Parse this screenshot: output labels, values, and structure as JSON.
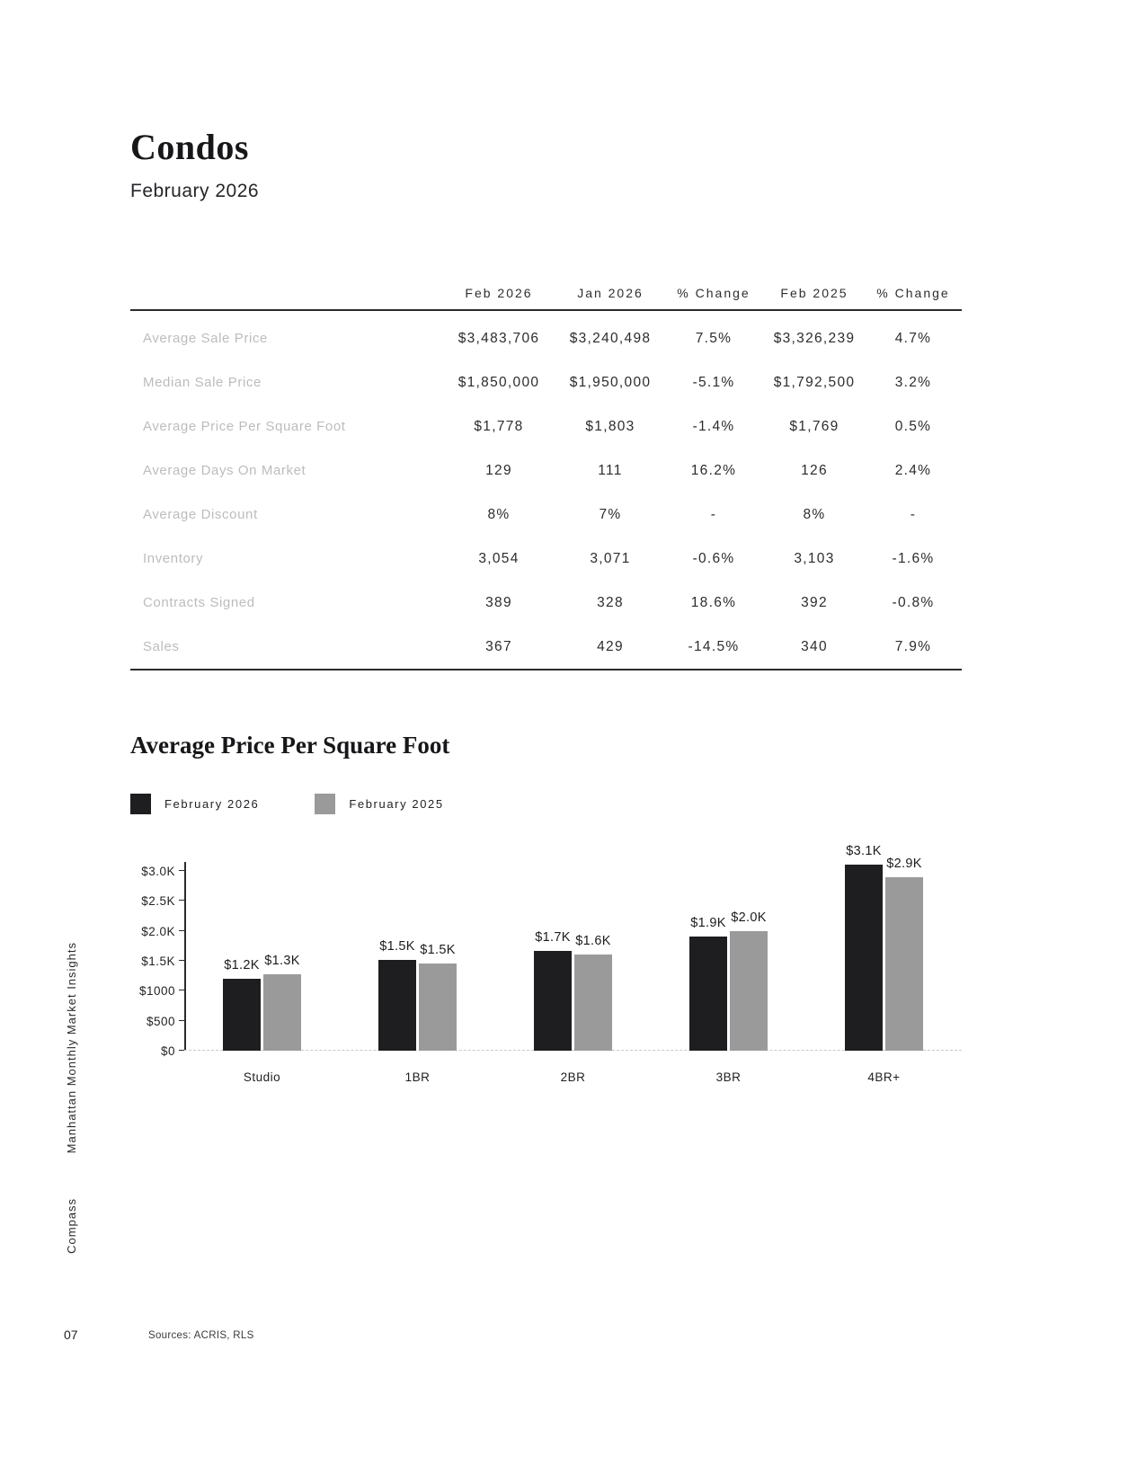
{
  "page": {
    "title": "Condos",
    "subtitle": "February 2026",
    "sidebar_title": "Manhattan Monthly Market Insights",
    "sidebar_brand": "Compass",
    "page_number": "07",
    "sources": "Sources: ACRIS, RLS"
  },
  "table": {
    "columns": [
      "Feb 2026",
      "Jan 2026",
      "% Change",
      "Feb 2025",
      "% Change"
    ],
    "rows": [
      {
        "label": "Average Sale Price",
        "values": [
          "$3,483,706",
          "$3,240,498",
          "7.5%",
          "$3,326,239",
          "4.7%"
        ]
      },
      {
        "label": "Median Sale Price",
        "values": [
          "$1,850,000",
          "$1,950,000",
          "-5.1%",
          "$1,792,500",
          "3.2%"
        ]
      },
      {
        "label": "Average Price Per Square Foot",
        "values": [
          "$1,778",
          "$1,803",
          "-1.4%",
          "$1,769",
          "0.5%"
        ]
      },
      {
        "label": "Average Days On Market",
        "values": [
          "129",
          "111",
          "16.2%",
          "126",
          "2.4%"
        ]
      },
      {
        "label": "Average Discount",
        "values": [
          "8%",
          "7%",
          "-",
          "8%",
          "-"
        ]
      },
      {
        "label": "Inventory",
        "values": [
          "3,054",
          "3,071",
          "-0.6%",
          "3,103",
          "-1.6%"
        ]
      },
      {
        "label": "Contracts Signed",
        "values": [
          "389",
          "328",
          "18.6%",
          "392",
          "-0.8%"
        ]
      },
      {
        "label": "Sales",
        "values": [
          "367",
          "429",
          "-14.5%",
          "340",
          "7.9%"
        ]
      }
    ]
  },
  "chart_data": {
    "type": "bar",
    "title": "Average Price Per Square Foot",
    "categories": [
      "Studio",
      "1BR",
      "2BR",
      "3BR",
      "4BR+"
    ],
    "series": [
      {
        "name": "February 2026",
        "color": "#1e1e21",
        "values": [
          1200,
          1510,
          1660,
          1900,
          3100
        ],
        "labels": [
          "$1.2K",
          "$1.5K",
          "$1.7K",
          "$1.9K",
          "$3.1K"
        ]
      },
      {
        "name": "February 2025",
        "color": "#9a9a9a",
        "values": [
          1270,
          1450,
          1600,
          2000,
          2890
        ],
        "labels": [
          "$1.3K",
          "$1.5K",
          "$1.6K",
          "$2.0K",
          "$2.9K"
        ]
      }
    ],
    "xlabel": "",
    "ylabel": "",
    "ylim": [
      0,
      3000
    ],
    "y_tick_values": [
      0,
      500,
      1000,
      1500,
      2000,
      2500,
      3000
    ],
    "y_tick_labels": [
      "$0",
      "$500",
      "$1000",
      "$1.5K",
      "$2.0K",
      "$2.5K",
      "$3.0K"
    ],
    "grid": false,
    "legend_position": "top-left"
  }
}
